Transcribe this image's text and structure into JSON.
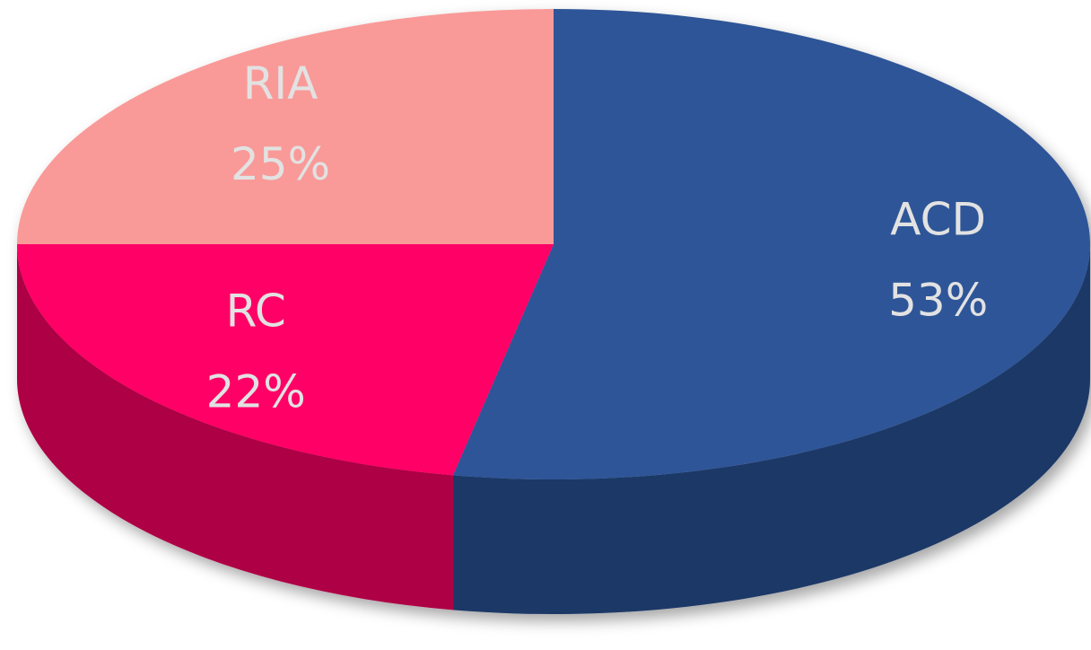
{
  "chart_data": {
    "type": "pie",
    "categories": [
      "ACD",
      "RC",
      "RIA"
    ],
    "values": [
      53,
      22,
      25
    ],
    "value_labels": [
      "53%",
      "22%",
      "25%"
    ],
    "colors": [
      "#2f5597",
      "#ff0066",
      "#f99a98"
    ]
  }
}
